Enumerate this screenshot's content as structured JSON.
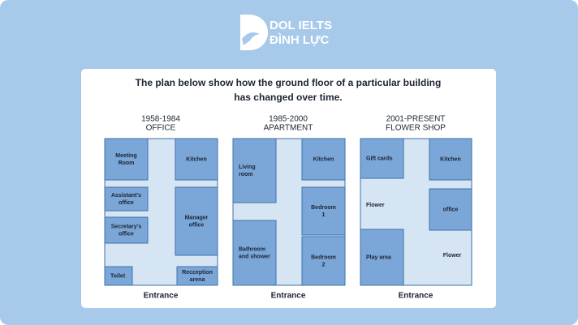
{
  "header": {
    "logo_line1": "DOL IELTS",
    "logo_line2": "ĐÌNH LỰC"
  },
  "title": [
    "The plan below show how the ground floor of a particular building",
    "has changed over time."
  ],
  "plans": [
    {
      "period": "1958-1984",
      "name": "OFFICE",
      "rooms": [
        [
          "Meeting",
          "Room"
        ],
        [
          "Kitchen"
        ],
        [
          "Assistant's",
          "office"
        ],
        [
          "Secretary's",
          "office"
        ],
        [
          "Manager",
          "office"
        ],
        [
          "Toilet"
        ],
        [
          "Recception",
          "arena"
        ]
      ],
      "entrance": "Entrance"
    },
    {
      "period": "1985-2000",
      "name": "APARTMENT",
      "rooms": [
        [
          "Living",
          "room"
        ],
        [
          "Kitchen"
        ],
        [
          "Bedroom",
          "1"
        ],
        [
          "Bathroom",
          "and shower"
        ],
        [
          "Bedroom",
          "2"
        ]
      ],
      "entrance": "Entrance"
    },
    {
      "period": "2001-PRESENT",
      "name": "FLOWER SHOP",
      "rooms": [
        [
          "Gift cards"
        ],
        [
          "Kitchen"
        ],
        [
          "office"
        ],
        [
          "Play area"
        ]
      ],
      "areas": [
        [
          "Flower"
        ],
        [
          "Flower"
        ]
      ],
      "entrance": "Entrance"
    }
  ]
}
